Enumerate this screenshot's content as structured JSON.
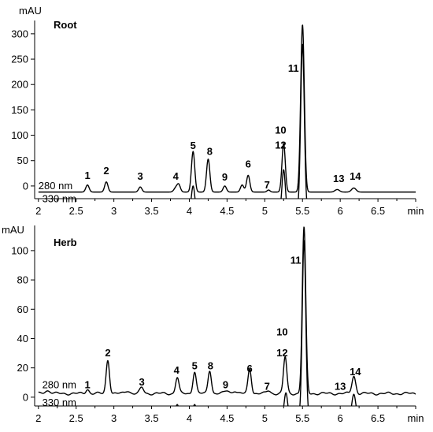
{
  "chart_data": [
    {
      "type": "line",
      "title": "Root",
      "ylabel": "mAU",
      "xlabel": "min",
      "ylim": [
        -25,
        320
      ],
      "yticks": [
        0,
        50,
        100,
        150,
        200,
        250,
        300
      ],
      "series": [
        {
          "name": "280 nm",
          "baseline": -12,
          "noise": "flat",
          "peaks": [
            {
              "x": 2.65,
              "h": 14,
              "w": 0.022
            },
            {
              "x": 2.9,
              "h": 20,
              "w": 0.022
            },
            {
              "x": 3.35,
              "h": 10,
              "w": 0.022
            },
            {
              "x": 3.82,
              "h": 8,
              "w": 0.025
            },
            {
              "x": 3.86,
              "h": 14,
              "w": 0.022
            },
            {
              "x": 4.05,
              "h": 80,
              "w": 0.022
            },
            {
              "x": 4.25,
              "h": 65,
              "w": 0.022
            },
            {
              "x": 4.47,
              "h": 12,
              "w": 0.022
            },
            {
              "x": 4.7,
              "h": 14,
              "w": 0.022
            },
            {
              "x": 4.78,
              "h": 33,
              "w": 0.022
            },
            {
              "x": 5.05,
              "h": 4,
              "w": 0.02
            },
            {
              "x": 5.25,
              "h": 96,
              "w": 0.022
            },
            {
              "x": 5.5,
              "h": 330,
              "w": 0.024
            },
            {
              "x": 5.96,
              "h": 5,
              "w": 0.03
            },
            {
              "x": 6.18,
              "h": 8,
              "w": 0.03
            }
          ]
        },
        {
          "name": "330 nm",
          "baseline": -50,
          "noise": "flat",
          "peaks": [
            {
              "x": 3.35,
              "h": 7,
              "w": 0.022
            },
            {
              "x": 3.82,
              "h": 8,
              "w": 0.028
            },
            {
              "x": 4.05,
              "h": 50,
              "w": 0.022
            },
            {
              "x": 5.25,
              "h": 82,
              "w": 0.022
            },
            {
              "x": 5.5,
              "h": 330,
              "w": 0.024
            },
            {
              "x": 5.96,
              "h": 4,
              "w": 0.03
            },
            {
              "x": 6.18,
              "h": 12,
              "w": 0.03
            }
          ]
        }
      ],
      "peak_labels": [
        {
          "text": "1",
          "x": 2.65,
          "y": 14
        },
        {
          "text": "2",
          "x": 2.9,
          "y": 23
        },
        {
          "text": "3",
          "x": 3.35,
          "y": 12
        },
        {
          "text": "4",
          "x": 3.82,
          "y": 12
        },
        {
          "text": "5",
          "x": 4.05,
          "y": 73
        },
        {
          "text": "8",
          "x": 4.27,
          "y": 61
        },
        {
          "text": "9",
          "x": 4.47,
          "y": 11
        },
        {
          "text": "6",
          "x": 4.78,
          "y": 36
        },
        {
          "text": "7",
          "x": 5.03,
          "y": -5
        },
        {
          "text": "10",
          "x": 5.21,
          "y": 103
        },
        {
          "text": "12",
          "x": 5.21,
          "y": 74
        },
        {
          "text": "11",
          "x": 5.38,
          "y": 225
        },
        {
          "text": "13",
          "x": 5.98,
          "y": 8
        },
        {
          "text": "14",
          "x": 6.2,
          "y": 12
        }
      ],
      "trace_labels": [
        {
          "text": "280 nm",
          "x": 2.0,
          "y": -6
        },
        {
          "text": "330 nm",
          "x": 2.05,
          "y": -32
        }
      ]
    },
    {
      "type": "line",
      "title": "Herb",
      "ylabel": "mAU",
      "xlabel": "min",
      "xlim": [
        1.95,
        7.0
      ],
      "ylim": [
        -6,
        115
      ],
      "yticks": [
        0,
        20,
        40,
        60,
        80,
        100
      ],
      "xticks": [
        2,
        2.5,
        3,
        3.5,
        4,
        4.5,
        5,
        5.5,
        6,
        6.5,
        7
      ],
      "xticklabels": [
        "2",
        "2.5",
        "3",
        "3.5",
        "4",
        "4.5",
        "5",
        "5.5",
        "6",
        "6.5",
        "min"
      ],
      "series": [
        {
          "name": "280 nm",
          "baseline": 2.5,
          "noise": "wavy",
          "peaks": [
            {
              "x": 2.12,
              "h": 2,
              "w": 0.04
            },
            {
              "x": 2.65,
              "h": 3,
              "w": 0.022
            },
            {
              "x": 2.92,
              "h": 23,
              "w": 0.022
            },
            {
              "x": 3.18,
              "h": 2,
              "w": 0.03
            },
            {
              "x": 3.37,
              "h": 4,
              "w": 0.025
            },
            {
              "x": 3.84,
              "h": 11,
              "w": 0.022
            },
            {
              "x": 4.07,
              "h": 15,
              "w": 0.022
            },
            {
              "x": 4.27,
              "h": 16,
              "w": 0.022
            },
            {
              "x": 4.5,
              "h": 2,
              "w": 0.03
            },
            {
              "x": 4.6,
              "h": 2,
              "w": 0.025
            },
            {
              "x": 4.8,
              "h": 17,
              "w": 0.022
            },
            {
              "x": 5.05,
              "h": 2,
              "w": 0.025
            },
            {
              "x": 5.27,
              "h": 25,
              "w": 0.022
            },
            {
              "x": 5.52,
              "h": 113,
              "w": 0.023
            },
            {
              "x": 6.18,
              "h": 12,
              "w": 0.025
            }
          ]
        },
        {
          "name": "330 nm",
          "baseline": -13,
          "noise": "flat",
          "peaks": [
            {
              "x": 3.37,
              "h": 2,
              "w": 0.025
            },
            {
              "x": 3.84,
              "h": 8,
              "w": 0.022
            },
            {
              "x": 4.07,
              "h": 8,
              "w": 0.022
            },
            {
              "x": 5.28,
              "h": 16,
              "w": 0.022
            },
            {
              "x": 5.52,
              "h": 120,
              "w": 0.023
            },
            {
              "x": 6.18,
              "h": 15,
              "w": 0.025
            }
          ]
        }
      ],
      "peak_labels": [
        {
          "text": "1",
          "x": 2.65,
          "y": 6
        },
        {
          "text": "2",
          "x": 2.92,
          "y": 28
        },
        {
          "text": "3",
          "x": 3.37,
          "y": 8
        },
        {
          "text": "4",
          "x": 3.83,
          "y": 16
        },
        {
          "text": "5",
          "x": 4.07,
          "y": 19
        },
        {
          "text": "8",
          "x": 4.28,
          "y": 19
        },
        {
          "text": "9",
          "x": 4.48,
          "y": 6
        },
        {
          "text": "6",
          "x": 4.8,
          "y": 17
        },
        {
          "text": "7",
          "x": 5.03,
          "y": 5
        },
        {
          "text": "10",
          "x": 5.23,
          "y": 42
        },
        {
          "text": "12",
          "x": 5.23,
          "y": 28
        },
        {
          "text": "11",
          "x": 5.41,
          "y": 91
        },
        {
          "text": "13",
          "x": 6.0,
          "y": 5
        },
        {
          "text": "14",
          "x": 6.2,
          "y": 15
        }
      ],
      "trace_labels": [
        {
          "text": "280 nm",
          "x": 2.05,
          "y": 6
        },
        {
          "text": "330 nm",
          "x": 2.05,
          "y": -6
        }
      ]
    }
  ]
}
